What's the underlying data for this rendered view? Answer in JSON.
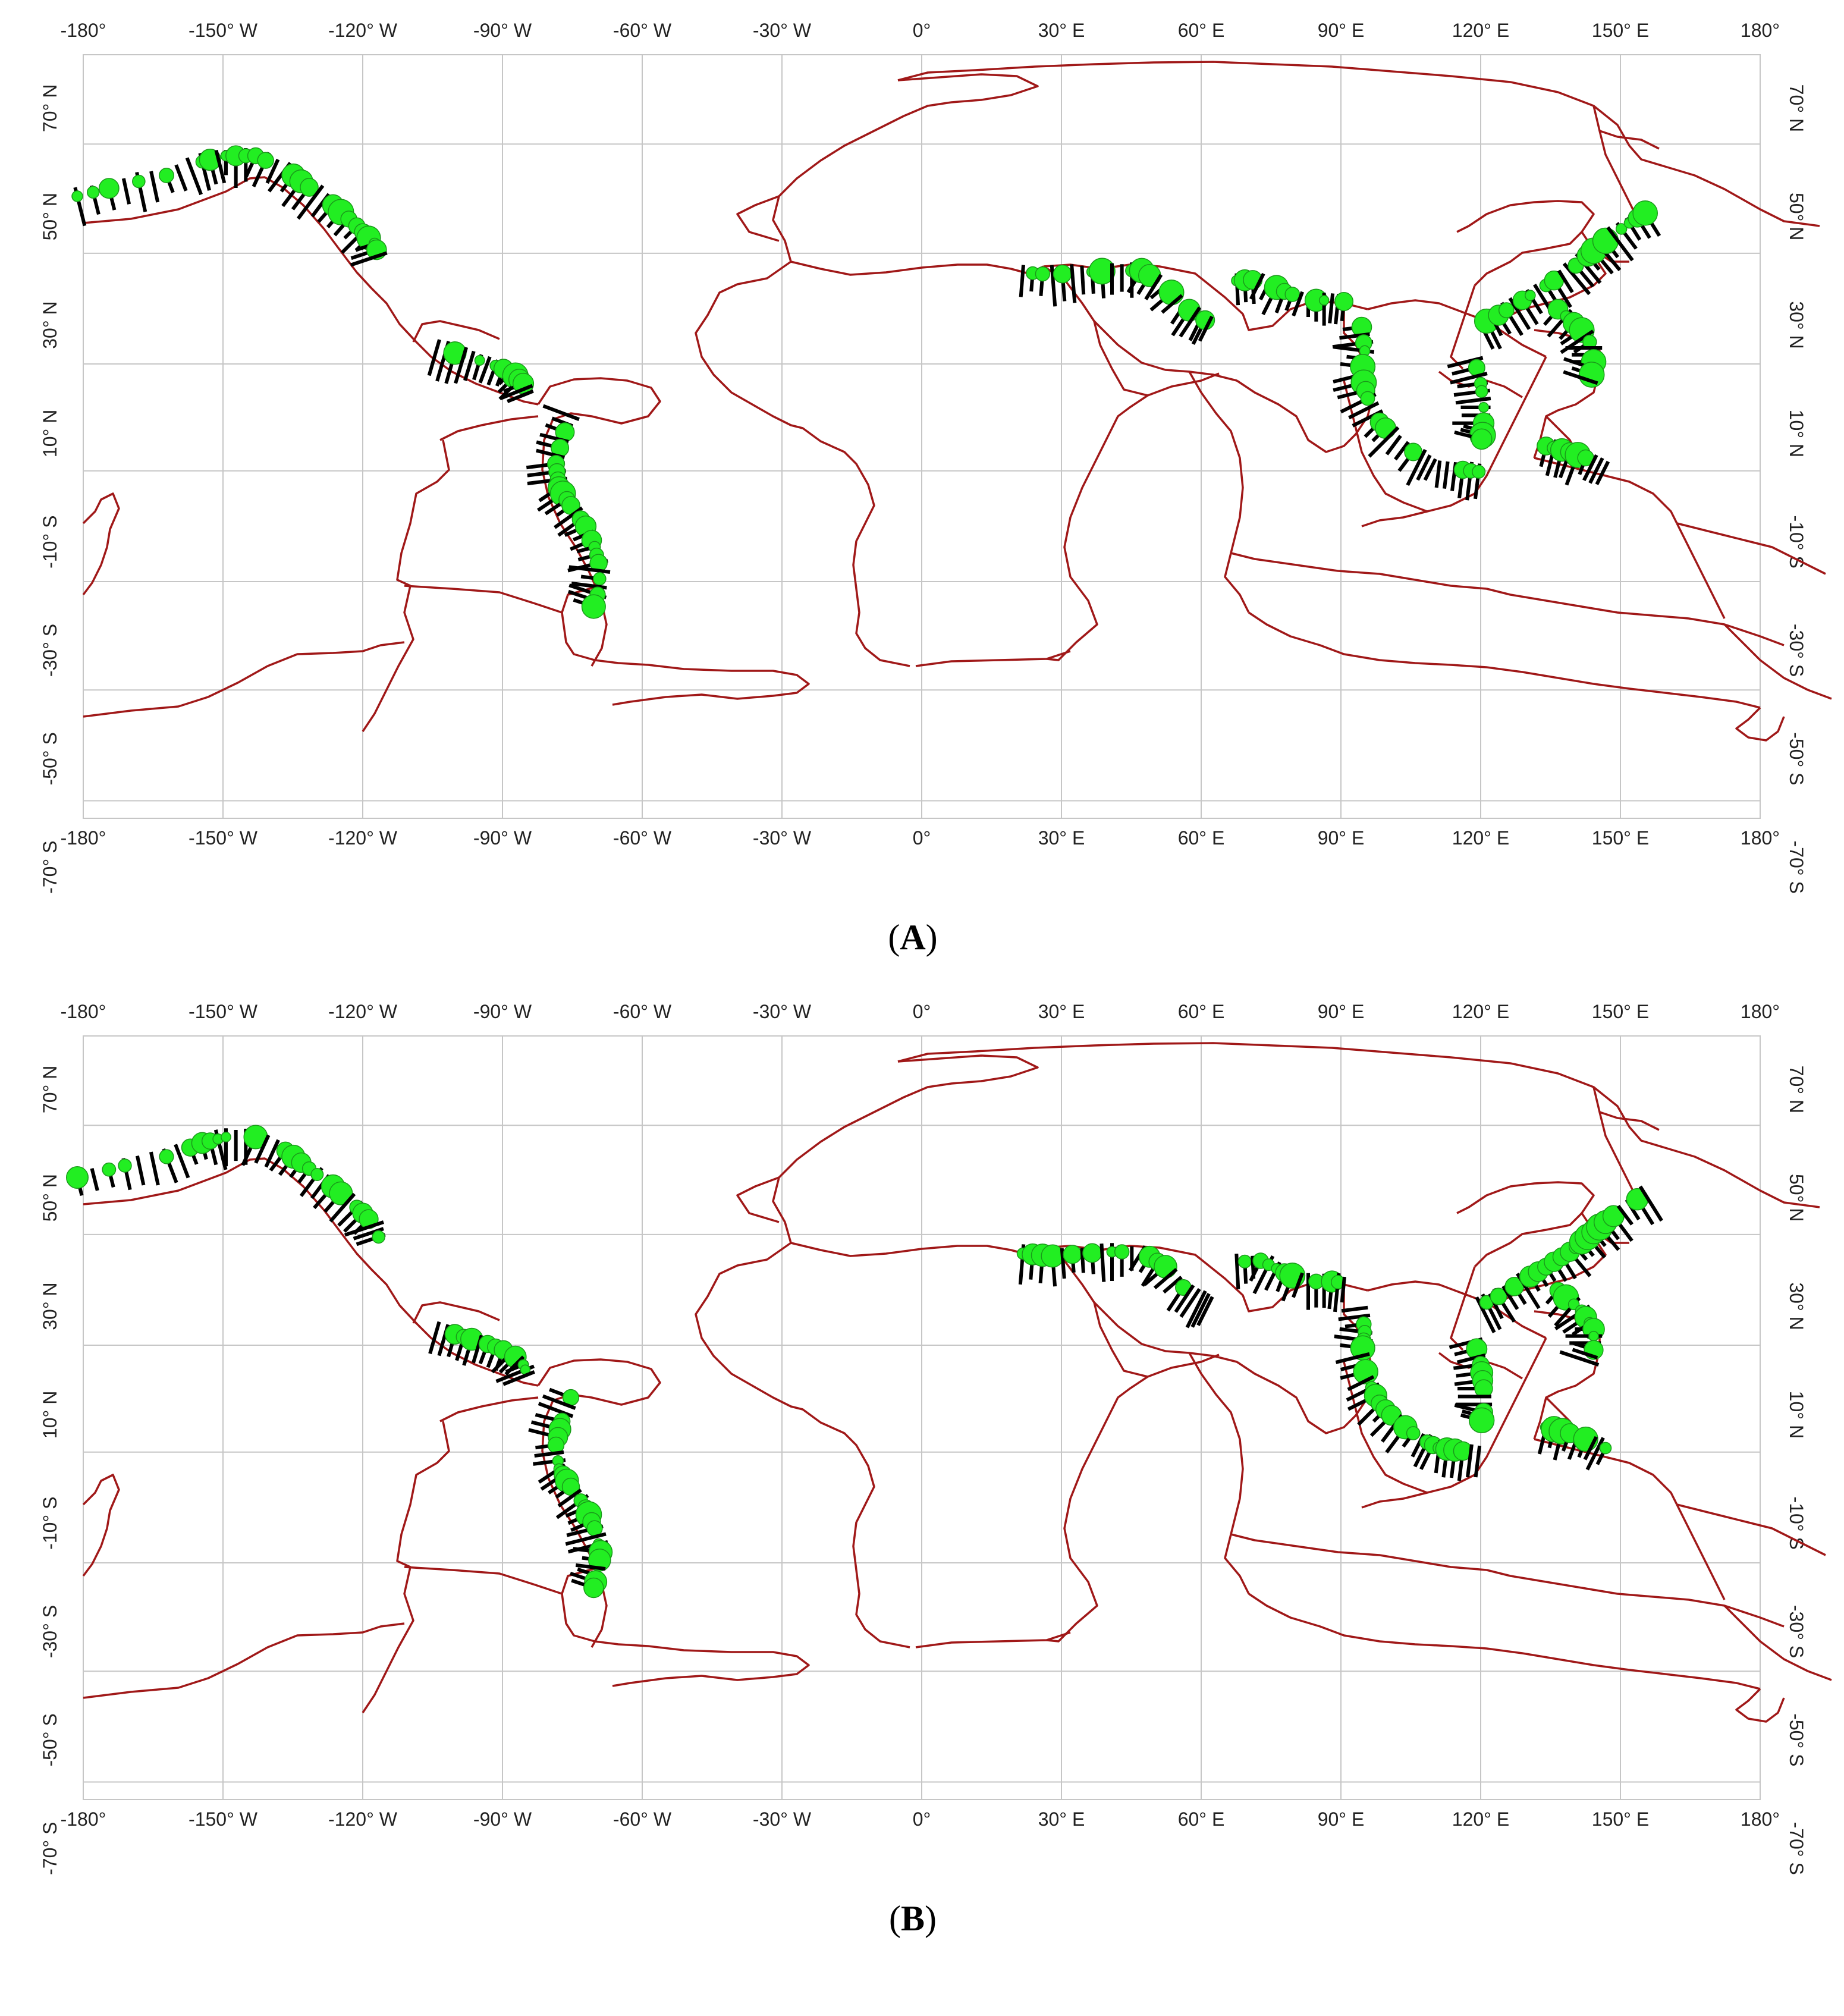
{
  "figure": {
    "panels": [
      {
        "id": "A",
        "label_open": "(",
        "label_letter": "A",
        "label_close": ")",
        "top_ticks": [
          "-180°",
          "-150° W",
          "-120° W",
          "-90° W",
          "-60° W",
          "-30° W",
          "0°",
          "30° E",
          "60° E",
          "90° E",
          "120° E",
          "150° E",
          "180°"
        ],
        "bottom_ticks": [
          "-180°",
          "-150° W",
          "-120° W",
          "-90° W",
          "-60° W",
          "-30° W",
          "0°",
          "30° E",
          "60° E",
          "90° E",
          "120° E",
          "150° E",
          "180°"
        ],
        "lat_ticks": [
          "70° N",
          "50° N",
          "30° N",
          "10° N",
          "-10° S",
          "-30° S",
          "-50° S",
          "-70° S"
        ]
      },
      {
        "id": "B",
        "label_open": "(",
        "label_letter": "B",
        "label_close": ")",
        "top_ticks": [
          "-180°",
          "-150° W",
          "-120° W",
          "-90° W",
          "-60° W",
          "-30° W",
          "0°",
          "30° E",
          "60° E",
          "90° E",
          "120° E",
          "150° E",
          "180°"
        ],
        "bottom_ticks": [
          "-180°",
          "-150° W",
          "-120° W",
          "-90° W",
          "-60° W",
          "-30° W",
          "0°",
          "30° E",
          "60° E",
          "90° E",
          "120° E",
          "150° E",
          "180°"
        ],
        "lat_ticks": [
          "70° N",
          "50° N",
          "30° N",
          "10° N",
          "-10° S",
          "-30° S",
          "-50° S",
          "-70° S"
        ]
      }
    ],
    "colors": {
      "plate_boundary": "#a01818",
      "marker_fill": "#22ee22",
      "vector": "#000000",
      "grid": "#c6c6c6"
    }
  }
}
